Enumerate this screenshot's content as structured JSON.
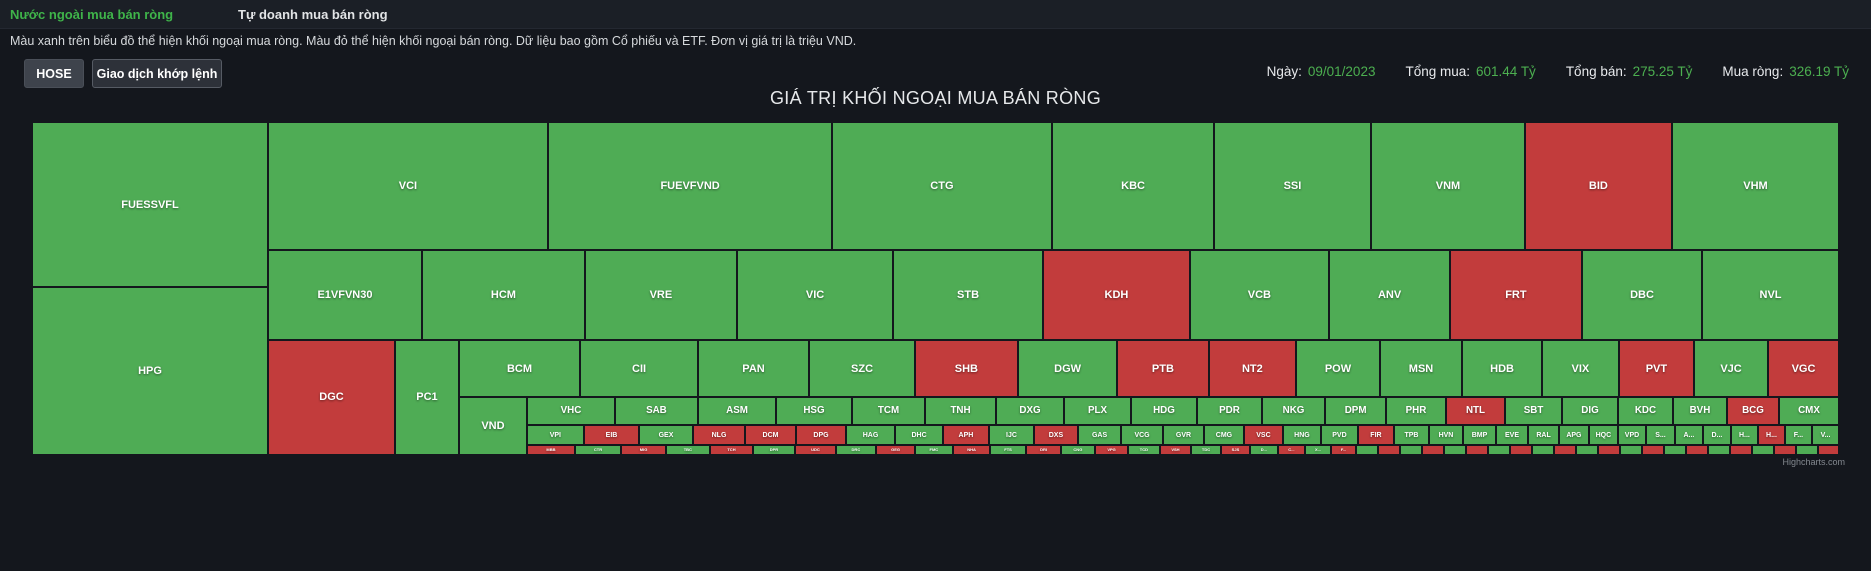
{
  "tabs": [
    {
      "label": "Nước ngoài mua bán ròng",
      "active": true
    },
    {
      "label": "Tự doanh mua bán ròng",
      "active": false
    }
  ],
  "description": "Màu xanh trên biểu đồ thể hiện khối ngoại mua ròng. Màu đỏ thể hiện khối ngoại bán ròng. Dữ liệu bao gồm Cổ phiếu và ETF. Đơn vị giá trị là triệu VND.",
  "controls": {
    "exchange_button": "HOSE",
    "matching_button": "Giao dịch khớp lệnh"
  },
  "stats": [
    {
      "label": "Ngày:",
      "value": "09/01/2023"
    },
    {
      "label": "Tổng mua:",
      "value": "601.44 Tỷ"
    },
    {
      "label": "Tổng bán:",
      "value": "275.25 Tỷ"
    },
    {
      "label": "Mua ròng:",
      "value": "326.19 Tỷ"
    }
  ],
  "chart_title": "GIÁ TRỊ KHỐI NGOẠI MUA BÁN RÒNG",
  "credit": "Highcharts.com",
  "colors": {
    "buy": "#4fac55",
    "sell": "#c23c3c",
    "accent": "#4caf50",
    "background": "#14171d"
  },
  "chart_data": {
    "type": "treemap",
    "title": "GIÁ TRỊ KHỐI NGOẠI MUA BÁN RÒNG",
    "unit": "triệu VND",
    "date": "09/01/2023",
    "total_buy": 601.44,
    "total_sell": 275.25,
    "net_buy": 326.19,
    "totals_unit": "Tỷ",
    "legend_note": "green = foreign net buy, red = foreign net sell; tile geometry in percent of plot area [ticker, g|r, x, y, w, h]",
    "tiles": [
      [
        "FUESSVFL",
        "g",
        0,
        0,
        13.06,
        49.55
      ],
      [
        "HPG",
        "g",
        0,
        49.55,
        13.06,
        50.45
      ],
      [
        "VCI",
        "g",
        13.06,
        0,
        15.49,
        38.44
      ],
      [
        "FUEVFVND",
        "g",
        28.56,
        0,
        15.72,
        38.44
      ],
      [
        "CTG",
        "g",
        44.27,
        0,
        12.17,
        38.44
      ],
      [
        "KBC",
        "g",
        56.45,
        0,
        8.97,
        38.44
      ],
      [
        "SSI",
        "g",
        65.41,
        0,
        8.69,
        38.44
      ],
      [
        "VNM",
        "g",
        74.1,
        0,
        8.52,
        38.44
      ],
      [
        "BID",
        "r",
        82.62,
        0,
        8.13,
        38.44
      ],
      [
        "VHM",
        "g",
        90.76,
        0,
        9.24,
        38.44
      ],
      [
        "E1VFVN30",
        "g",
        13.06,
        38.44,
        8.52,
        27.03
      ],
      [
        "HCM",
        "g",
        21.58,
        38.44,
        9.02,
        27.03
      ],
      [
        "VRE",
        "g",
        30.6,
        38.44,
        8.41,
        27.03
      ],
      [
        "VIC",
        "g",
        39.02,
        38.44,
        8.63,
        27.03
      ],
      [
        "STB",
        "g",
        47.65,
        38.44,
        8.3,
        27.03
      ],
      [
        "KDH",
        "r",
        55.95,
        38.44,
        8.13,
        27.03
      ],
      [
        "VCB",
        "g",
        64.08,
        38.44,
        7.69,
        27.03
      ],
      [
        "ANV",
        "g",
        71.78,
        38.44,
        6.7,
        27.03
      ],
      [
        "FRT",
        "r",
        78.47,
        38.44,
        7.3,
        27.03
      ],
      [
        "DBC",
        "g",
        85.78,
        38.44,
        6.64,
        27.03
      ],
      [
        "NVL",
        "g",
        92.42,
        38.44,
        7.58,
        27.03
      ],
      [
        "DGC",
        "r",
        13.06,
        65.47,
        7.03,
        34.53
      ],
      [
        "PC1",
        "g",
        20.09,
        65.47,
        3.54,
        34.53
      ],
      [
        "VND",
        "g",
        23.63,
        82.58,
        3.76,
        17.42
      ],
      [
        "BCM",
        "g",
        23.63,
        65.47,
        6.7,
        17.12
      ],
      [
        "CII",
        "g",
        30.33,
        65.47,
        6.53,
        17.12
      ],
      [
        "PAN",
        "g",
        36.86,
        65.47,
        6.14,
        17.12
      ],
      [
        "SZC",
        "g",
        43.0,
        65.47,
        5.87,
        17.12
      ],
      [
        "SHB",
        "r",
        48.86,
        65.47,
        5.7,
        17.12
      ],
      [
        "DGW",
        "g",
        54.57,
        65.47,
        5.48,
        17.12
      ],
      [
        "PTB",
        "r",
        60.04,
        65.47,
        5.09,
        17.12
      ],
      [
        "NT2",
        "r",
        65.13,
        65.47,
        4.81,
        17.12
      ],
      [
        "POW",
        "g",
        69.95,
        65.47,
        4.65,
        17.12
      ],
      [
        "MSN",
        "g",
        74.6,
        65.47,
        4.54,
        17.12
      ],
      [
        "HDB",
        "g",
        79.14,
        65.47,
        4.43,
        17.12
      ],
      [
        "VIX",
        "g",
        83.56,
        65.47,
        4.26,
        17.12
      ],
      [
        "PVT",
        "r",
        87.82,
        65.47,
        4.15,
        17.12
      ],
      [
        "VJC",
        "g",
        91.98,
        65.47,
        4.09,
        17.12
      ],
      [
        "VGC",
        "r",
        96.07,
        65.47,
        3.93,
        17.12
      ],
      [
        "VHC",
        "g",
        27.39,
        82.58,
        4.87,
        8.41
      ],
      [
        "SAB",
        "g",
        32.26,
        82.58,
        4.59,
        8.41
      ],
      [
        "ASM",
        "g",
        36.86,
        82.58,
        4.32,
        8.41
      ],
      [
        "HSG",
        "g",
        41.17,
        82.58,
        4.21,
        8.41
      ],
      [
        "TCM",
        "g",
        45.38,
        82.58,
        4.04,
        8.41
      ],
      [
        "TNH",
        "g",
        49.42,
        82.58,
        3.93,
        8.41
      ],
      [
        "DXG",
        "g",
        53.35,
        82.58,
        3.76,
        8.41
      ],
      [
        "PLX",
        "g",
        57.11,
        82.58,
        3.71,
        8.41
      ],
      [
        "HDG",
        "g",
        60.82,
        82.58,
        3.65,
        8.41
      ],
      [
        "PDR",
        "g",
        64.47,
        82.58,
        3.6,
        8.41
      ],
      [
        "NKG",
        "g",
        68.07,
        82.58,
        3.49,
        8.41
      ],
      [
        "DPM",
        "g",
        71.56,
        82.58,
        3.38,
        8.41
      ],
      [
        "PHR",
        "g",
        74.93,
        82.58,
        3.32,
        8.41
      ],
      [
        "NTL",
        "r",
        78.25,
        82.58,
        3.27,
        8.41
      ],
      [
        "SBT",
        "g",
        81.52,
        82.58,
        3.15,
        8.41
      ],
      [
        "DIG",
        "g",
        84.67,
        82.58,
        3.1,
        8.41
      ],
      [
        "KDC",
        "g",
        87.77,
        82.58,
        3.04,
        8.41
      ],
      [
        "BVH",
        "g",
        90.81,
        82.58,
        2.99,
        8.41
      ],
      [
        "BCG",
        "r",
        93.8,
        82.58,
        2.88,
        8.41
      ],
      [
        "CMX",
        "g",
        96.68,
        82.58,
        3.32,
        8.41
      ],
      [
        "VPI",
        "g",
        27.39,
        91.0,
        3.15,
        6.01
      ],
      [
        "EIB",
        "r",
        30.55,
        91.0,
        3.04,
        6.01
      ],
      [
        "GEX",
        "g",
        33.59,
        91.0,
        2.99,
        6.01
      ],
      [
        "NLG",
        "r",
        36.58,
        91.0,
        2.88,
        6.01
      ],
      [
        "DCM",
        "r",
        39.46,
        91.0,
        2.82,
        6.01
      ],
      [
        "DPG",
        "r",
        42.28,
        91.0,
        2.77,
        6.01
      ],
      [
        "HAG",
        "g",
        45.05,
        91.0,
        2.71,
        6.01
      ],
      [
        "DHC",
        "g",
        47.76,
        91.0,
        2.66,
        6.01
      ],
      [
        "APH",
        "r",
        50.41,
        91.0,
        2.55,
        6.01
      ],
      [
        "IJC",
        "g",
        52.96,
        91.0,
        2.49,
        6.01
      ],
      [
        "DXS",
        "r",
        55.45,
        91.0,
        2.43,
        6.01
      ],
      [
        "GAS",
        "g",
        57.89,
        91.0,
        2.38,
        6.01
      ],
      [
        "VCG",
        "g",
        60.27,
        91.0,
        2.32,
        6.01
      ],
      [
        "GVR",
        "g",
        62.59,
        91.0,
        2.27,
        6.01
      ],
      [
        "CMG",
        "g",
        64.86,
        91.0,
        2.21,
        6.01
      ],
      [
        "VSC",
        "r",
        67.07,
        91.0,
        2.16,
        6.01
      ],
      [
        "HNG",
        "g",
        69.23,
        91.0,
        2.1,
        6.01
      ],
      [
        "PVD",
        "g",
        71.33,
        91.0,
        2.05,
        6.01
      ],
      [
        "FIR",
        "r",
        73.38,
        91.0,
        1.99,
        6.01
      ],
      [
        "TPB",
        "g",
        75.37,
        91.0,
        1.94,
        6.01
      ],
      [
        "HVN",
        "g",
        77.31,
        91.0,
        1.88,
        6.01
      ],
      [
        "BMP",
        "g",
        79.19,
        91.0,
        1.83,
        6.01
      ],
      [
        "EVE",
        "g",
        81.02,
        91.0,
        1.77,
        6.01
      ],
      [
        "RAL",
        "g",
        82.79,
        91.0,
        1.72,
        6.01
      ],
      [
        "APG",
        "g",
        84.5,
        91.0,
        1.66,
        6.01
      ],
      [
        "HQC",
        "g",
        86.16,
        91.0,
        1.6,
        6.01
      ],
      [
        "VPD",
        "g",
        87.77,
        91.0,
        1.55,
        6.01
      ],
      [
        "S...",
        "g",
        89.32,
        91.0,
        1.6,
        6.01
      ],
      [
        "A...",
        "g",
        90.92,
        91.0,
        1.55,
        6.01
      ],
      [
        "D...",
        "g",
        92.47,
        91.0,
        1.55,
        6.01
      ],
      [
        "H...",
        "g",
        94.02,
        91.0,
        1.49,
        6.01
      ],
      [
        "H...",
        "r",
        95.52,
        91.0,
        1.49,
        6.01
      ],
      [
        "F...",
        "g",
        97.01,
        91.0,
        1.49,
        6.01
      ],
      [
        "V...",
        "g",
        98.51,
        91.0,
        1.49,
        6.01
      ],
      [
        "MBB",
        "r",
        27.39,
        97.0,
        2.66,
        3.0
      ],
      [
        "CTR",
        "g",
        30.05,
        97.0,
        2.55,
        3.0
      ],
      [
        "MIG",
        "r",
        32.6,
        97.0,
        2.49,
        3.0
      ],
      [
        "TBC",
        "g",
        35.08,
        97.0,
        2.43,
        3.0
      ],
      [
        "TCH",
        "r",
        37.52,
        97.0,
        2.38,
        3.0
      ],
      [
        "DPR",
        "g",
        39.9,
        97.0,
        2.32,
        3.0
      ],
      [
        "UDC",
        "r",
        42.22,
        97.0,
        2.27,
        3.0
      ],
      [
        "DRC",
        "g",
        44.49,
        97.0,
        2.21,
        3.0
      ],
      [
        "GEG",
        "r",
        46.71,
        97.0,
        2.16,
        3.0
      ],
      [
        "FMC",
        "g",
        48.86,
        97.0,
        2.1,
        3.0
      ],
      [
        "NHA",
        "r",
        50.97,
        97.0,
        2.05,
        3.0
      ],
      [
        "FTS",
        "g",
        53.02,
        97.0,
        1.99,
        3.0
      ],
      [
        "DRI",
        "r",
        55.01,
        97.0,
        1.94,
        3.0
      ],
      [
        "CNG",
        "g",
        56.94,
        97.0,
        1.88,
        3.0
      ],
      [
        "VPG",
        "r",
        58.83,
        97.0,
        1.83,
        3.0
      ],
      [
        "TCD",
        "g",
        60.65,
        97.0,
        1.77,
        3.0
      ],
      [
        "VSH",
        "r",
        62.42,
        97.0,
        1.72,
        3.0
      ],
      [
        "TDC",
        "g",
        64.14,
        97.0,
        1.66,
        3.0
      ],
      [
        "SJS",
        "r",
        65.8,
        97.0,
        1.6,
        3.0
      ],
      [
        "D...",
        "g",
        67.4,
        97.0,
        1.55,
        3.0
      ],
      [
        "C...",
        "r",
        68.95,
        97.0,
        1.49,
        3.0
      ],
      [
        "X...",
        "g",
        70.45,
        97.0,
        1.44,
        3.0
      ],
      [
        "F...",
        "r",
        71.89,
        97.0,
        1.38,
        3.0
      ],
      [
        "",
        "g",
        73.27,
        97.0,
        1.22,
        3.0
      ],
      [
        "",
        "r",
        74.49,
        97.0,
        1.22,
        3.0
      ],
      [
        "",
        "g",
        75.7,
        97.0,
        1.22,
        3.0
      ],
      [
        "",
        "r",
        76.92,
        97.0,
        1.22,
        3.0
      ],
      [
        "",
        "g",
        78.14,
        97.0,
        1.22,
        3.0
      ],
      [
        "",
        "r",
        79.36,
        97.0,
        1.22,
        3.0
      ],
      [
        "",
        "g",
        80.58,
        97.0,
        1.22,
        3.0
      ],
      [
        "",
        "r",
        81.79,
        97.0,
        1.22,
        3.0
      ],
      [
        "",
        "g",
        83.01,
        97.0,
        1.22,
        3.0
      ],
      [
        "",
        "r",
        84.23,
        97.0,
        1.22,
        3.0
      ],
      [
        "",
        "g",
        85.45,
        97.0,
        1.22,
        3.0
      ],
      [
        "",
        "r",
        86.66,
        97.0,
        1.22,
        3.0
      ],
      [
        "",
        "g",
        87.88,
        97.0,
        1.22,
        3.0
      ],
      [
        "",
        "r",
        89.1,
        97.0,
        1.22,
        3.0
      ],
      [
        "",
        "g",
        90.32,
        97.0,
        1.22,
        3.0
      ],
      [
        "",
        "r",
        91.53,
        97.0,
        1.22,
        3.0
      ],
      [
        "",
        "g",
        92.75,
        97.0,
        1.22,
        3.0
      ],
      [
        "",
        "r",
        93.97,
        97.0,
        1.22,
        3.0
      ],
      [
        "",
        "g",
        95.19,
        97.0,
        1.22,
        3.0
      ],
      [
        "",
        "r",
        96.4,
        97.0,
        1.22,
        3.0
      ],
      [
        "",
        "g",
        97.62,
        97.0,
        1.22,
        3.0
      ],
      [
        "",
        "r",
        98.84,
        97.0,
        1.16,
        3.0
      ]
    ]
  }
}
